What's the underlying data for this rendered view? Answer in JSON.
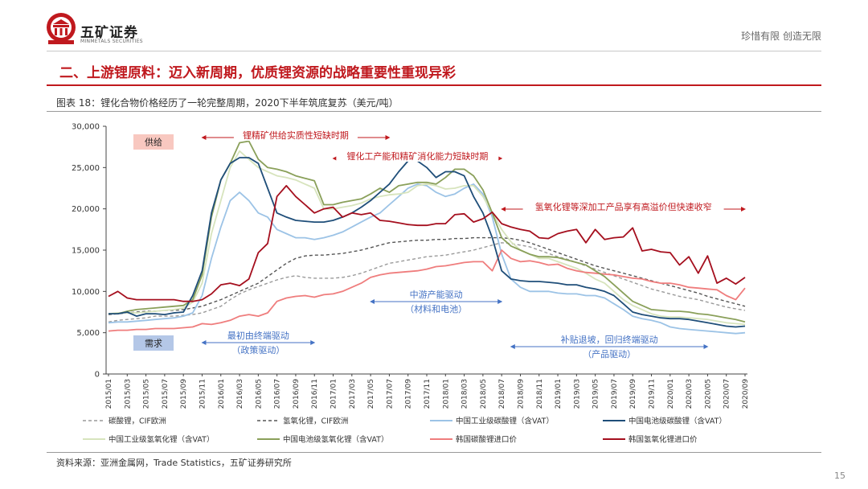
{
  "header": {
    "brand_name": "五矿证券",
    "brand_sub": "MINMETALS SECURITIES",
    "slogan": "珍惜有限 创造无限"
  },
  "section_title": "二、上游锂原料：迈入新周期，优质锂资源的战略重要性重现异彩",
  "chart_caption": "图表 18：锂化合物价格经历了一轮完整周期，2020下半年筑底复苏（美元/吨）",
  "source_note": "资料来源：亚洲金属网，Trade Statistics，五矿证券研究所",
  "page_number": "15",
  "colors": {
    "brand_red": "#c0191e",
    "cif_carbonate": "#9a9a9a",
    "cif_hydroxide": "#555555",
    "china_ind_carbonate": "#9cc3e6",
    "china_batt_carbonate": "#1f4e79",
    "china_ind_hydroxide": "#d7e4bd",
    "china_batt_hydroxide": "#8aa05a",
    "korea_carbonate": "#ef7d7d",
    "korea_hydroxide": "#a50f1e",
    "supply_box": "#f8c8c0",
    "demand_box": "#b4c7e7"
  },
  "chart_data": {
    "type": "line",
    "ylim": [
      0,
      30000
    ],
    "yticks": [
      "0",
      "5,000",
      "10,000",
      "15,000",
      "20,000",
      "25,000",
      "30,000"
    ],
    "x": [
      "2015/01",
      "2015/02",
      "2015/03",
      "2015/04",
      "2015/05",
      "2015/06",
      "2015/07",
      "2015/08",
      "2015/09",
      "2015/10",
      "2015/11",
      "2015/12",
      "2016/01",
      "2016/02",
      "2016/03",
      "2016/04",
      "2016/05",
      "2016/06",
      "2016/07",
      "2016/08",
      "2016/09",
      "2016/10",
      "2016/11",
      "2016/12",
      "2017/01",
      "2017/02",
      "2017/03",
      "2017/04",
      "2017/05",
      "2017/06",
      "2017/07",
      "2017/08",
      "2017/09",
      "2017/10",
      "2017/11",
      "2017/12",
      "2018/01",
      "2018/02",
      "2018/03",
      "2018/04",
      "2018/05",
      "2018/06",
      "2018/07",
      "2018/08",
      "2018/09",
      "2018/10",
      "2018/11",
      "2018/12",
      "2019/01",
      "2019/02",
      "2019/03",
      "2019/04",
      "2019/05",
      "2019/06",
      "2019/07",
      "2019/08",
      "2019/09",
      "2019/10",
      "2019/11",
      "2019/12",
      "2020/01",
      "2020/02",
      "2020/03",
      "2020/04",
      "2020/05",
      "2020/06",
      "2020/07",
      "2020/08",
      "2020/09"
    ],
    "xtick_labels": [
      "2015/01",
      "2015/03",
      "2015/05",
      "2015/07",
      "2015/09",
      "2015/11",
      "2016/01",
      "2016/03",
      "2016/05",
      "2016/07",
      "2016/09",
      "2016/11",
      "2017/01",
      "2017/03",
      "2017/05",
      "2017/07",
      "2017/09",
      "2017/11",
      "2018/01",
      "2018/03",
      "2018/05",
      "2018/07",
      "2018/09",
      "2018/11",
      "2019/01",
      "2019/03",
      "2019/05",
      "2019/07",
      "2019/09",
      "2019/11",
      "2020/01",
      "2020/03",
      "2020/05",
      "2020/07",
      "2020/09"
    ],
    "series": [
      {
        "name": "碳酸锂，CIF欧洲",
        "color": "#9a9a9a",
        "dash": "4,3",
        "values": [
          6300,
          6500,
          6600,
          6700,
          6800,
          7000,
          7000,
          7000,
          7100,
          7200,
          7400,
          7800,
          8200,
          9000,
          9700,
          10200,
          10600,
          11000,
          11400,
          11700,
          11900,
          11700,
          11600,
          11600,
          11600,
          11700,
          11900,
          12200,
          12600,
          13000,
          13400,
          13600,
          13800,
          14000,
          14200,
          14300,
          14400,
          14600,
          14800,
          15000,
          15300,
          15600,
          15900,
          15800,
          15600,
          15400,
          15000,
          14600,
          14200,
          13900,
          13500,
          13100,
          12700,
          12300,
          11900,
          11500,
          11100,
          10700,
          10300,
          10000,
          9700,
          9400,
          9200,
          9000,
          8700,
          8400,
          8100,
          7900,
          7700
        ]
      },
      {
        "name": "氢氧化锂，CIF欧洲",
        "color": "#555555",
        "dash": "4,3",
        "values": [
          7200,
          7300,
          7400,
          7500,
          7600,
          7600,
          7700,
          7700,
          7800,
          8000,
          8200,
          8600,
          9000,
          9500,
          10000,
          10500,
          11000,
          11800,
          12600,
          13400,
          14000,
          14300,
          14400,
          14400,
          14500,
          14600,
          14800,
          15000,
          15300,
          15600,
          15900,
          16000,
          16100,
          16200,
          16200,
          16300,
          16300,
          16400,
          16400,
          16500,
          16500,
          16500,
          16500,
          16400,
          16200,
          15900,
          15500,
          15100,
          14700,
          14300,
          13900,
          13500,
          13100,
          12800,
          12500,
          12200,
          11900,
          11600,
          11300,
          11000,
          10700,
          10400,
          10100,
          9800,
          9400,
          9100,
          8800,
          8500,
          8200
        ]
      },
      {
        "name": "中国工业级碳酸锂（含VAT）",
        "color": "#9cc3e6",
        "dash": "",
        "values": [
          6200,
          6300,
          6300,
          6400,
          6500,
          6600,
          6700,
          6800,
          7000,
          7400,
          9500,
          14000,
          17800,
          21000,
          22000,
          21000,
          19500,
          19000,
          17500,
          17000,
          16500,
          16500,
          16300,
          16500,
          16800,
          17200,
          17800,
          18400,
          19000,
          19500,
          20500,
          21500,
          22500,
          23000,
          22800,
          22000,
          21500,
          21800,
          22500,
          23000,
          21800,
          19000,
          14500,
          11500,
          10500,
          10000,
          10000,
          10000,
          9800,
          9700,
          9700,
          9500,
          9500,
          9200,
          8500,
          7800,
          7000,
          6700,
          6500,
          6200,
          5700,
          5500,
          5400,
          5300,
          5200,
          5100,
          5000,
          4900,
          5000
        ]
      },
      {
        "name": "中国电池级碳酸锂（含VAT）",
        "color": "#1f4e79",
        "dash": "",
        "values": [
          7300,
          7300,
          7500,
          7000,
          7300,
          7300,
          7200,
          7400,
          7500,
          9500,
          12500,
          19500,
          23500,
          25500,
          26200,
          26200,
          25500,
          22500,
          19500,
          19000,
          18600,
          18500,
          18400,
          18400,
          18600,
          19000,
          19500,
          20200,
          21000,
          22000,
          23000,
          24500,
          25800,
          25800,
          25000,
          23800,
          24500,
          24500,
          24000,
          21500,
          19500,
          16500,
          12500,
          11500,
          11300,
          11200,
          11200,
          11100,
          11000,
          10800,
          10800,
          10500,
          10300,
          10000,
          9500,
          8500,
          7500,
          7200,
          7000,
          6800,
          6700,
          6700,
          6600,
          6400,
          6200,
          6000,
          5800,
          5700,
          5800
        ]
      },
      {
        "name": "中国工业级氢氧化锂（含VAT）",
        "color": "#d7e4bd",
        "dash": "",
        "values": [
          7300,
          7400,
          7400,
          7400,
          7500,
          7600,
          7700,
          7800,
          8000,
          8700,
          11000,
          17000,
          21000,
          25000,
          27000,
          26000,
          25000,
          24500,
          24000,
          23800,
          23500,
          23000,
          22500,
          20000,
          20000,
          20200,
          20400,
          20700,
          21200,
          21500,
          21700,
          21800,
          22000,
          22800,
          23000,
          22800,
          22400,
          22500,
          22800,
          22800,
          21500,
          19500,
          17500,
          16000,
          15000,
          14500,
          14000,
          14000,
          13600,
          13200,
          12800,
          12200,
          11500,
          11000,
          10000,
          9000,
          8300,
          7800,
          7300,
          7000,
          6900,
          6900,
          6800,
          6700,
          6600,
          6400,
          6200,
          6100,
          6000
        ]
      },
      {
        "name": "中国电池级氢氧化锂（含VAT）",
        "color": "#8aa05a",
        "dash": "",
        "values": [
          7300,
          7300,
          7600,
          7800,
          7900,
          8000,
          8100,
          8200,
          8300,
          9000,
          12000,
          19000,
          23500,
          25500,
          28000,
          28200,
          26000,
          25000,
          24800,
          24500,
          24000,
          23700,
          23400,
          20500,
          20500,
          20800,
          21000,
          21200,
          21800,
          22500,
          22000,
          22800,
          23000,
          23200,
          23200,
          23000,
          23800,
          24800,
          24800,
          24000,
          22300,
          19500,
          16500,
          15500,
          15000,
          14500,
          14200,
          14200,
          14100,
          13800,
          13500,
          13200,
          12500,
          11800,
          10800,
          9800,
          8800,
          8300,
          7800,
          7700,
          7600,
          7600,
          7500,
          7300,
          7200,
          7000,
          6800,
          6600,
          6300
        ]
      },
      {
        "name": "韩国碳酸锂进口价",
        "color": "#ef7d7d",
        "dash": "",
        "values": [
          5200,
          5300,
          5300,
          5400,
          5400,
          5500,
          5500,
          5500,
          5600,
          5700,
          6100,
          6000,
          6200,
          6500,
          7000,
          7200,
          7000,
          7400,
          8800,
          9200,
          9400,
          9500,
          9300,
          9600,
          9700,
          10000,
          10500,
          11000,
          11700,
          12000,
          12200,
          12300,
          12400,
          12500,
          12700,
          13000,
          13100,
          13300,
          13500,
          13600,
          13600,
          12500,
          15000,
          14000,
          13600,
          13700,
          13500,
          13200,
          13300,
          12800,
          12500,
          12300,
          12200,
          12100,
          12000,
          11800,
          11600,
          11500,
          11200,
          11000,
          11000,
          10800,
          10500,
          10400,
          10300,
          10200,
          9500,
          9000,
          10400
        ]
      },
      {
        "name": "韩国氢氧化锂进口价",
        "color": "#a50f1e",
        "dash": "",
        "values": [
          9400,
          10000,
          9200,
          9000,
          9000,
          9000,
          9000,
          9000,
          8800,
          8800,
          9000,
          9700,
          10800,
          11000,
          10700,
          11500,
          14700,
          15800,
          21500,
          22800,
          21500,
          20500,
          19500,
          20000,
          20200,
          19000,
          19500,
          19300,
          19500,
          18600,
          18500,
          18300,
          18100,
          18000,
          18000,
          18200,
          18200,
          19300,
          19400,
          18400,
          18800,
          19600,
          18200,
          17800,
          17500,
          17300,
          16500,
          16400,
          17000,
          17300,
          17500,
          15900,
          17500,
          16300,
          16500,
          16600,
          17700,
          14900,
          15100,
          14800,
          14700,
          13200,
          14200,
          12200,
          14300,
          11000,
          11600,
          10900,
          11700
        ]
      }
    ],
    "annotations": [
      {
        "text": "锂精矿供给实质性短缺时期",
        "color": "#c0191e",
        "span": [
          "2015/11",
          "2017/07"
        ]
      },
      {
        "text": "锂化工产能和精矿消化能力短缺时期",
        "color": "#c0191e",
        "span": [
          "2017/01",
          "2018/07"
        ]
      },
      {
        "text": "氢氧化锂等深加工产品享有高溢价但快速收窄",
        "color": "#c0191e",
        "span": [
          "2018/07",
          "2020/09"
        ]
      },
      {
        "text": "中游产能驱动",
        "sub": "（材料和电池）",
        "color": "#4472c4",
        "span": [
          "2017/05",
          "2018/07"
        ]
      },
      {
        "text": "最初由终端驱动",
        "sub": "（政策驱动）",
        "color": "#4472c4",
        "span": [
          "2015/11",
          "2016/11"
        ]
      },
      {
        "text": "补贴退坡，回归终端驱动",
        "sub": "（产品驱动）",
        "color": "#4472c4",
        "span": [
          "2018/08",
          "2020/05"
        ]
      }
    ],
    "boxes": [
      {
        "text": "供给",
        "color": "#f8c8c0"
      },
      {
        "text": "需求",
        "color": "#b4c7e7"
      }
    ]
  }
}
